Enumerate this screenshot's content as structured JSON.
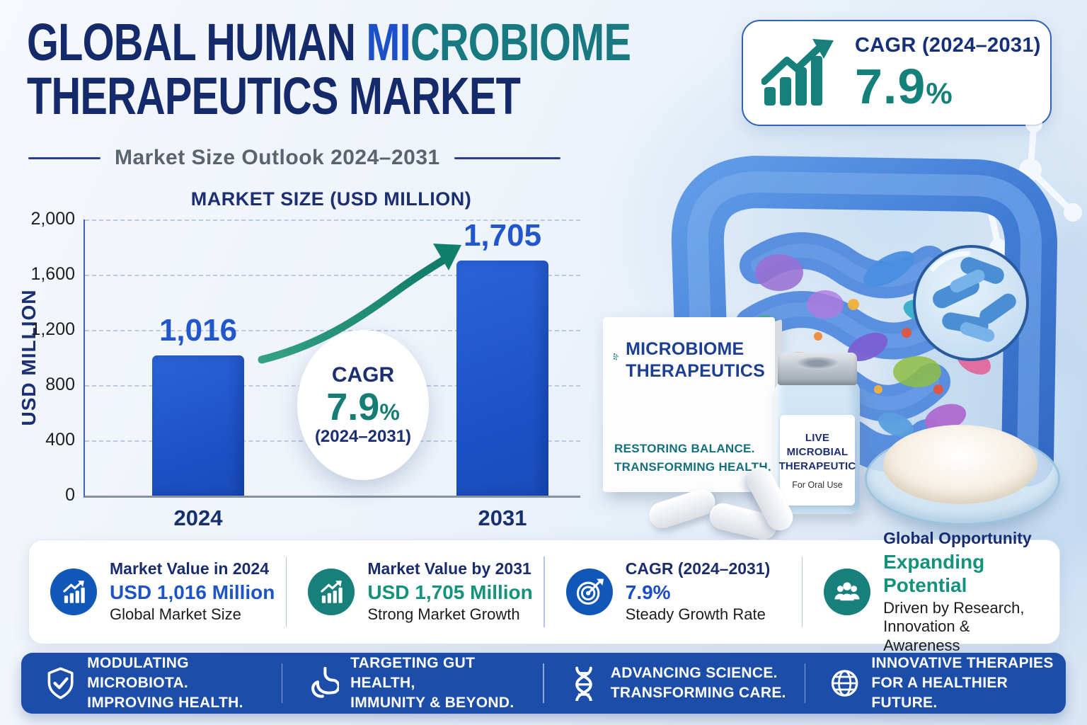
{
  "header": {
    "title1_navy": "GLOBAL HUMAN ",
    "title1_blue": "MI",
    "title1_teal": "CROBIOME",
    "title2": "THERAPEUTICS MARKET",
    "subtitle": "Market Size Outlook 2024–2031"
  },
  "cagr_badge": {
    "label": "CAGR (2024–2031)",
    "value": "7.9",
    "unit": "%"
  },
  "chart_data": {
    "type": "bar",
    "title": "MARKET SIZE (USD MILLION)",
    "ylabel": "USD MILLION",
    "categories": [
      "2024",
      "2031"
    ],
    "values": [
      1016,
      1705
    ],
    "value_labels": [
      "1,016",
      "1,705"
    ],
    "ylim": [
      0,
      2000
    ],
    "yticks": [
      0,
      400,
      800,
      1200,
      1600,
      2000
    ],
    "ytick_labels": [
      "0",
      "400",
      "800",
      "1,200",
      "1,600",
      "2,000"
    ],
    "grid": true,
    "bar_color": "#1e55cb",
    "annotation": {
      "label": "CAGR",
      "value": "7.9",
      "unit": "%",
      "period": "(2024–2031)"
    }
  },
  "product": {
    "box_title_line1": "MICROBIOME",
    "box_title_line2": "THERAPEUTICS",
    "box_tagline_line1": "RESTORING BALANCE.",
    "box_tagline_line2": "TRANSFORMING HEALTH.",
    "vial_line1": "LIVE",
    "vial_line2": "MICROBIAL",
    "vial_line3": "THERAPEUTIC",
    "vial_sub": "For Oral Use"
  },
  "stats": [
    {
      "title": "Market Value in 2024",
      "value": "USD 1,016 Million",
      "caption": "Global Market Size"
    },
    {
      "title": "Market Value by 2031",
      "value": "USD 1,705 Million",
      "caption": "Strong Market Growth"
    },
    {
      "title": "CAGR (2024–2031)",
      "value": "7.9%",
      "caption": "Steady Growth Rate"
    },
    {
      "title": "Global Opportunity",
      "value": "Expanding Potential",
      "caption": "Driven by Research, Innovation & Awareness"
    }
  ],
  "footer": [
    {
      "line1": "MODULATING MICROBIOTA.",
      "line2": "IMPROVING HEALTH."
    },
    {
      "line1": "TARGETING GUT HEALTH,",
      "line2": "IMMUNITY & BEYOND."
    },
    {
      "line1": "ADVANCING SCIENCE.",
      "line2": "TRANSFORMING CARE."
    },
    {
      "line1": "INNOVATIVE THERAPIES",
      "line2": "FOR A HEALTHIER FUTURE."
    }
  ],
  "colors": {
    "navy": "#152a6b",
    "royal_blue": "#1b50c8",
    "teal": "#187a80",
    "bar_blue": "#1e55cb",
    "stat_blue": "#1157b8",
    "stat_teal": "#17807a",
    "value_green": "#14927b",
    "footer_blue": "#1c4da9"
  }
}
